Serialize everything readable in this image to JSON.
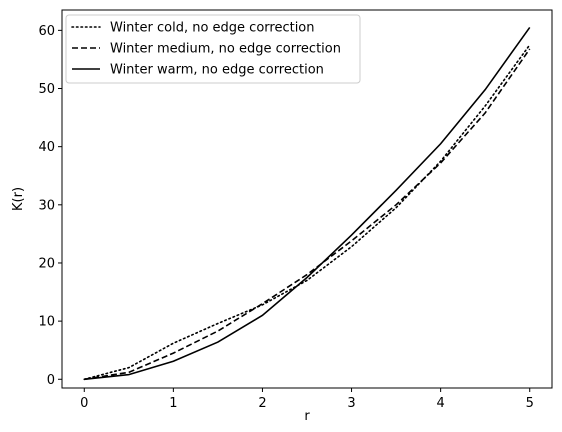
{
  "chart_data": {
    "type": "line",
    "title": "",
    "xlabel": "r",
    "ylabel": "K(r)",
    "xlim": [
      -0.25,
      5.25
    ],
    "ylim": [
      -1.5,
      63.5
    ],
    "xticks": [
      0,
      1,
      2,
      3,
      4,
      5
    ],
    "yticks": [
      0,
      10,
      20,
      30,
      40,
      50,
      60
    ],
    "grid": false,
    "legend_position": "top-left",
    "x": [
      0,
      0.5,
      1,
      1.5,
      2,
      2.5,
      3,
      3.5,
      4,
      4.5,
      5
    ],
    "series": [
      {
        "name": "Winter cold, no edge correction",
        "style": "dotted",
        "color": "#000000",
        "values": [
          0,
          2.0,
          6.2,
          9.6,
          12.8,
          17.0,
          22.8,
          29.5,
          37.5,
          47.0,
          57.5
        ]
      },
      {
        "name": "Winter medium, no edge correction",
        "style": "dashed",
        "color": "#000000",
        "values": [
          0,
          1.2,
          4.5,
          8.3,
          13.0,
          18.0,
          23.8,
          30.0,
          37.2,
          45.8,
          56.8
        ]
      },
      {
        "name": "Winter warm, no edge correction",
        "style": "solid",
        "color": "#000000",
        "values": [
          0,
          0.8,
          3.1,
          6.4,
          11.0,
          17.5,
          24.8,
          32.5,
          40.5,
          49.8,
          60.5
        ]
      }
    ]
  }
}
